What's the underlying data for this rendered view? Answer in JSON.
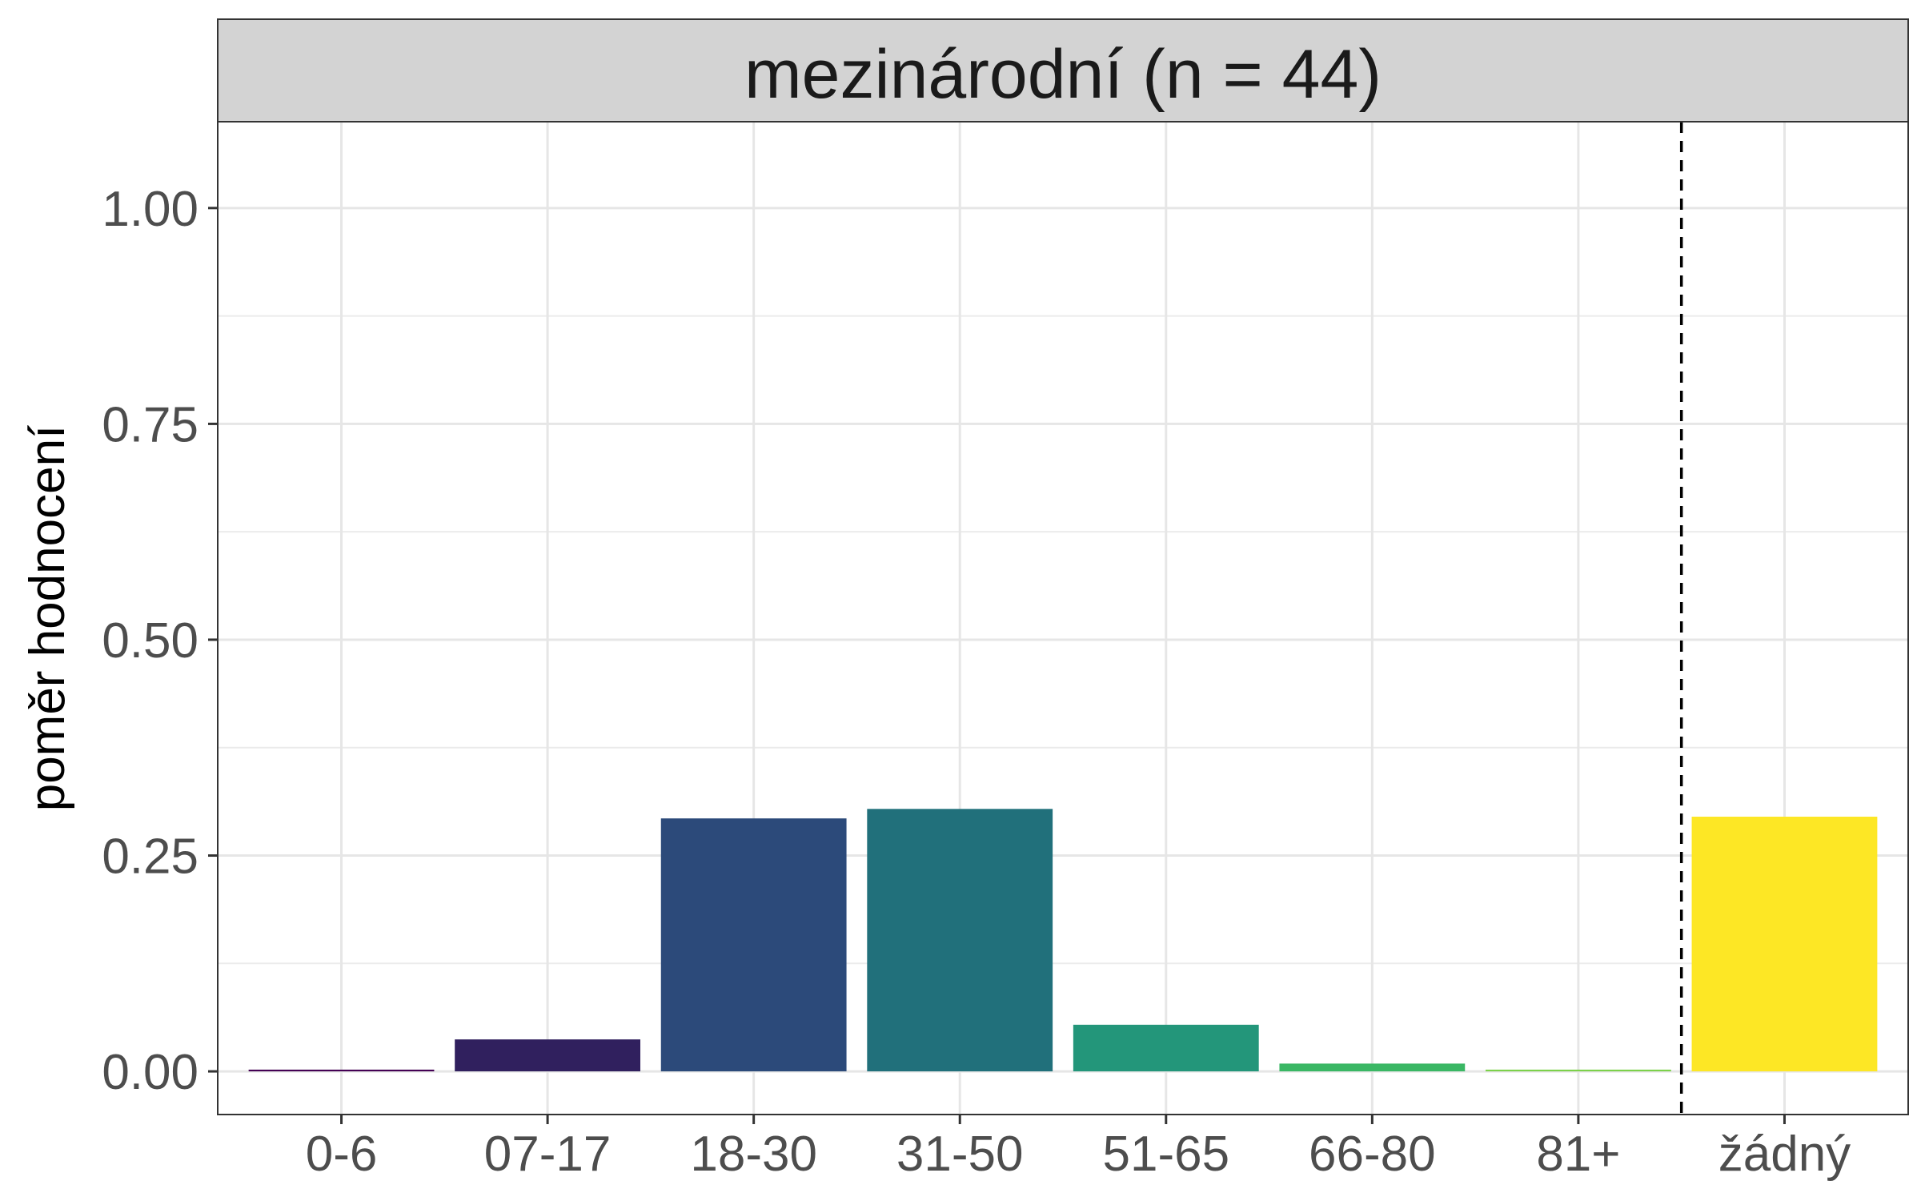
{
  "chart_data": {
    "type": "bar",
    "facet_title": "mezinárodní (n = 44)",
    "ylabel": "poměr hodnocení",
    "xlabel": "",
    "categories": [
      "0-6",
      "07-17",
      "18-30",
      "31-50",
      "51-65",
      "66-80",
      "81+",
      "žádný"
    ],
    "values": [
      0.002,
      0.037,
      0.293,
      0.304,
      0.054,
      0.009,
      0.002,
      0.295
    ],
    "colors": [
      "#440154",
      "#30205e",
      "#2c4a7a",
      "#21707b",
      "#23967a",
      "#3ab764",
      "#7cd14a",
      "#fde725"
    ],
    "ylim": [
      -0.05,
      1.1
    ],
    "yticks": [
      0,
      0.25,
      0.5,
      0.75,
      1.0
    ],
    "ytick_labels": [
      "0.00",
      "0.25",
      "0.50",
      "0.75",
      "1.00"
    ],
    "reference_line": {
      "between": [
        "81+",
        "žádný"
      ],
      "style": "dashed"
    },
    "grid": true,
    "legend": "none"
  }
}
